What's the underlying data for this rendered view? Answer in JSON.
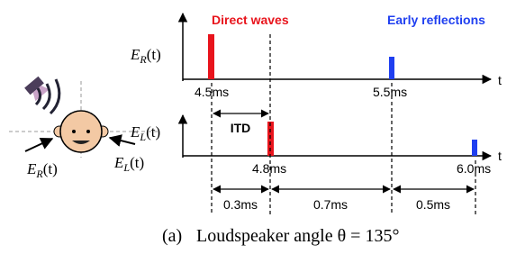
{
  "legend": {
    "direct": "Direct waves",
    "reflections": "Early reflections"
  },
  "right_channel": {
    "label": {
      "main": "E",
      "sub": "R",
      "arg": "(t)"
    },
    "axis": "t",
    "direct_time": "4.5ms",
    "reflection_time": "5.5ms"
  },
  "left_channel": {
    "label": {
      "main": "E",
      "sub": "L",
      "arg": "(t)"
    },
    "axis": "t",
    "direct_time": "4.8ms",
    "reflection_time": "6.0ms"
  },
  "itd": "ITD",
  "intervals": [
    "0.3ms",
    "0.7ms",
    "0.5ms"
  ],
  "head": {
    "right_label": {
      "main": "E",
      "sub": "R",
      "arg": "(t)"
    },
    "left_label": {
      "main": "E",
      "sub": "L",
      "arg": "(t)"
    }
  },
  "caption": {
    "tag": "(a)",
    "text": "Loudspeaker angle θ = 135°"
  }
}
